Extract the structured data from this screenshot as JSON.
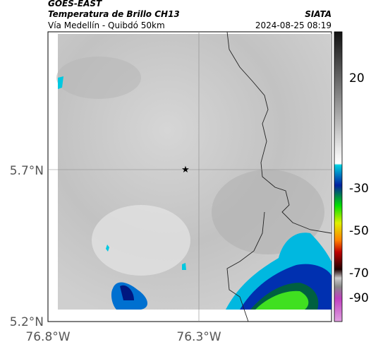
{
  "header": {
    "source": "GOES-EAST",
    "title": "Temperatura de Brillo CH13",
    "subtitle": "Vía Medellín - Quibdó 50km",
    "org": "SIATA",
    "datetime": "2024-08-25 08:19"
  },
  "map": {
    "lat_labels": [
      "5.7°N",
      "5.2°N"
    ],
    "lon_labels": [
      "76.8°W",
      "76.3°W"
    ]
  },
  "colorbar": {
    "ticks": [
      "20",
      "-30",
      "-50",
      "-70",
      "-90"
    ]
  }
}
